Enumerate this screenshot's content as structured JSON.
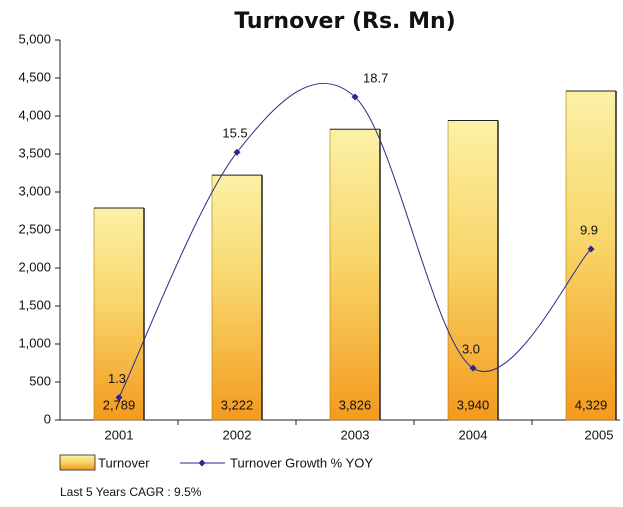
{
  "chart_data": {
    "type": "bar",
    "title": "Turnover (Rs. Mn)",
    "categories": [
      "2001",
      "2002",
      "2003",
      "2004",
      "2005"
    ],
    "series": [
      {
        "name": "Turnover",
        "type": "bar",
        "color": "#f39a1e",
        "values": [
          2789,
          3222,
          3826,
          3940,
          4329
        ],
        "value_labels": [
          "2,789",
          "3,222",
          "3,826",
          "3,940",
          "4,329"
        ]
      },
      {
        "name": "Turnover Growth % YOY",
        "type": "line",
        "axis": "y2",
        "color": "#2a2a8c",
        "values": [
          1.3,
          15.5,
          18.7,
          3.0,
          9.9
        ],
        "value_labels": [
          "1.3",
          "15.5",
          "18.7",
          "3.0",
          "9.9"
        ]
      }
    ],
    "ylim": [
      0,
      5000
    ],
    "yticks": [
      0,
      500,
      {
        "value": 1000,
        "label": "1,000"
      },
      {
        "value": 1500,
        "label": "1,500"
      },
      {
        "value": 2000,
        "label": "2,000"
      },
      {
        "value": 2500,
        "label": "2,500"
      },
      {
        "value": 3000,
        "label": "3,000"
      },
      {
        "value": 3500,
        "label": "3,500"
      },
      {
        "value": 4000,
        "label": "4,000"
      },
      {
        "value": 4500,
        "label": "4,500"
      },
      {
        "value": 5000,
        "label": "5,000"
      }
    ],
    "y2lim": [
      0,
      22
    ],
    "note": "Last 5 Years CAGR : 9.5%"
  }
}
